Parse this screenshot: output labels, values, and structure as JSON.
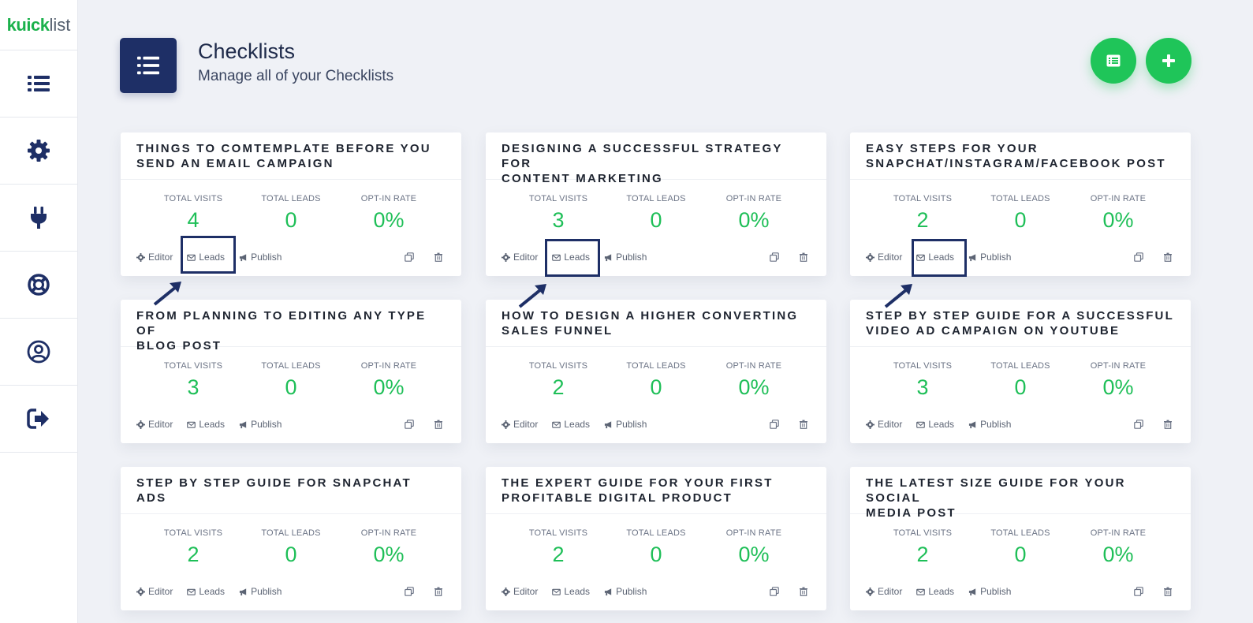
{
  "logo": {
    "part1": "kuick",
    "part2": "list"
  },
  "sidebar": {
    "items": [
      {
        "name": "list-icon"
      },
      {
        "name": "gear-icon"
      },
      {
        "name": "plug-icon"
      },
      {
        "name": "lifebuoy-icon"
      },
      {
        "name": "user-icon"
      },
      {
        "name": "logout-icon"
      }
    ]
  },
  "header": {
    "title": "Checklists",
    "subtitle": "Manage all of your Checklists"
  },
  "labels": {
    "visits": "TOTAL VISITS",
    "leads": "TOTAL LEADS",
    "optin": "OPT-IN RATE",
    "editor": "Editor",
    "leads_action": "Leads",
    "publish": "Publish"
  },
  "cards": [
    {
      "title_line1": "THINGS TO COMTEMPLATE BEFORE YOU",
      "title_line2": "SEND AN EMAIL CAMPAIGN",
      "visits": "4",
      "leads": "0",
      "rate": "0%"
    },
    {
      "title_line1": "DESIGNING A SUCCESSFUL STRATEGY FOR",
      "title_line2": "CONTENT MARKETING",
      "visits": "3",
      "leads": "0",
      "rate": "0%"
    },
    {
      "title_line1": "EASY STEPS FOR YOUR",
      "title_line2": "SNAPCHAT/INSTAGRAM/FACEBOOK POST",
      "visits": "2",
      "leads": "0",
      "rate": "0%"
    },
    {
      "title_line1": "FROM PLANNING TO EDITING ANY TYPE OF",
      "title_line2": "BLOG POST",
      "visits": "3",
      "leads": "0",
      "rate": "0%"
    },
    {
      "title_line1": "HOW TO DESIGN A HIGHER CONVERTING",
      "title_line2": "SALES FUNNEL",
      "visits": "2",
      "leads": "0",
      "rate": "0%"
    },
    {
      "title_line1": "STEP BY STEP GUIDE FOR A SUCCESSFUL",
      "title_line2": "VIDEO AD CAMPAIGN ON YOUTUBE",
      "visits": "3",
      "leads": "0",
      "rate": "0%"
    },
    {
      "title_line1": "STEP BY STEP GUIDE FOR SNAPCHAT ADS",
      "title_line2": "",
      "visits": "2",
      "leads": "0",
      "rate": "0%"
    },
    {
      "title_line1": "THE EXPERT GUIDE FOR YOUR FIRST",
      "title_line2": "PROFITABLE DIGITAL PRODUCT",
      "visits": "2",
      "leads": "0",
      "rate": "0%"
    },
    {
      "title_line1": "THE LATEST SIZE GUIDE FOR YOUR SOCIAL",
      "title_line2": "MEDIA POST",
      "visits": "2",
      "leads": "0",
      "rate": "0%"
    }
  ],
  "colors": {
    "accent_green": "#1fc559",
    "navy": "#1e2f66",
    "value_green": "#1fbf58"
  }
}
